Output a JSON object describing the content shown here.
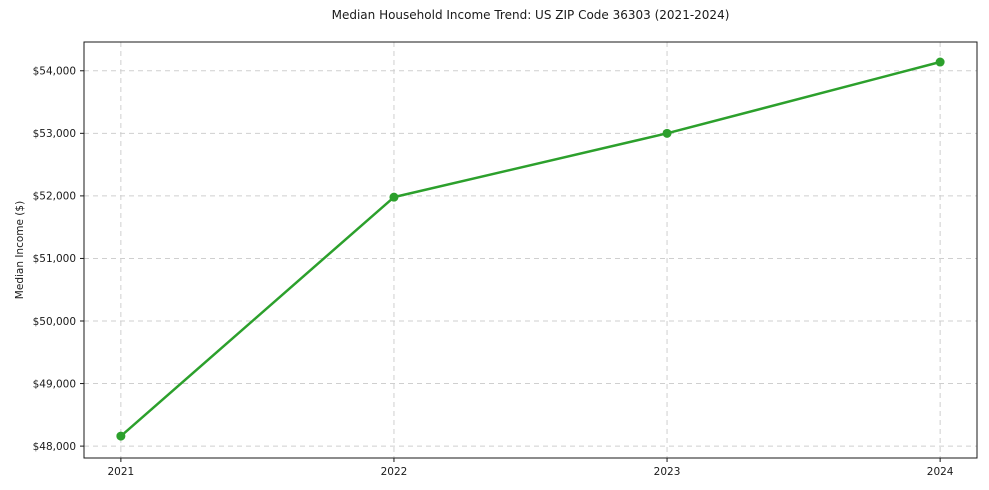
{
  "chart_data": {
    "type": "line",
    "title": "Median Household Income Trend: US ZIP Code 36303 (2021-2024)",
    "xlabel": "",
    "ylabel": "Median Income ($)",
    "x": [
      2021,
      2022,
      2023,
      2024
    ],
    "series": [
      {
        "name": "Median Household Income",
        "values": [
          48160,
          51980,
          53000,
          54140
        ]
      }
    ],
    "xticks": {
      "values": [
        2021,
        2022,
        2023,
        2024
      ],
      "labels": [
        "2021",
        "2022",
        "2023",
        "2024"
      ]
    },
    "yticks": {
      "values": [
        48000,
        49000,
        50000,
        51000,
        52000,
        53000,
        54000
      ],
      "labels": [
        "$48,000",
        "$49,000",
        "$50,000",
        "$51,000",
        "$52,000",
        "$53,000",
        "$54,000"
      ]
    },
    "xlim": [
      2020.865,
      2024.135
    ],
    "ylim": [
      47810,
      54460
    ],
    "grid": "both, dashed",
    "legend": "none",
    "line_color": "#2ca02c",
    "marker": "circle",
    "grid_color": "#cfcfcf",
    "spine_color": "#1a1a1a"
  }
}
